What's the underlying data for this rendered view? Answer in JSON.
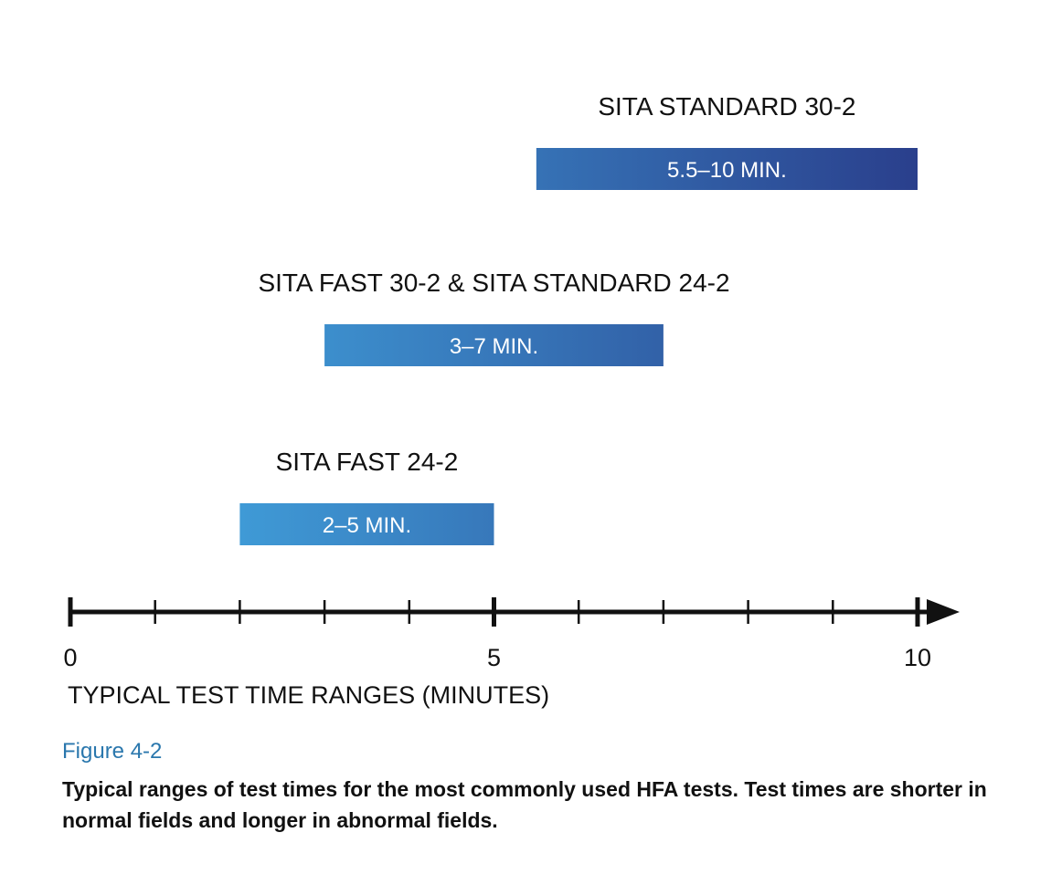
{
  "chart_data": {
    "type": "bar",
    "orientation": "horizontal-range",
    "xlim": [
      0,
      10
    ],
    "x_ticks": [
      0,
      1,
      2,
      3,
      4,
      5,
      6,
      7,
      8,
      9,
      10
    ],
    "x_tick_labels": [
      {
        "value": 0,
        "label": "0"
      },
      {
        "value": 5,
        "label": "5"
      },
      {
        "value": 10,
        "label": "10"
      }
    ],
    "xlabel": "TYPICAL TEST TIME RANGES (MINUTES)",
    "grid": false,
    "legend": "none",
    "bars": [
      {
        "name": "SITA STANDARD 30-2",
        "start": 5.5,
        "end": 10,
        "label": "5.5–10 MIN."
      },
      {
        "name": "SITA FAST 30-2 & SITA STANDARD 24-2",
        "start": 3,
        "end": 7,
        "label": "3–7 MIN."
      },
      {
        "name": "SITA FAST 24-2",
        "start": 2,
        "end": 5,
        "label": "2–5 MIN."
      }
    ],
    "colors": {
      "bar_light": "#3f9ad6",
      "bar_dark": "#2a3f8c",
      "axis": "#111111"
    }
  },
  "figure": {
    "label": "Figure 4-2",
    "label_color": "#2a77ad",
    "caption": "Typical ranges of test times for the most commonly used HFA tests. Test times are shorter in normal fields and longer in abnormal fields."
  }
}
